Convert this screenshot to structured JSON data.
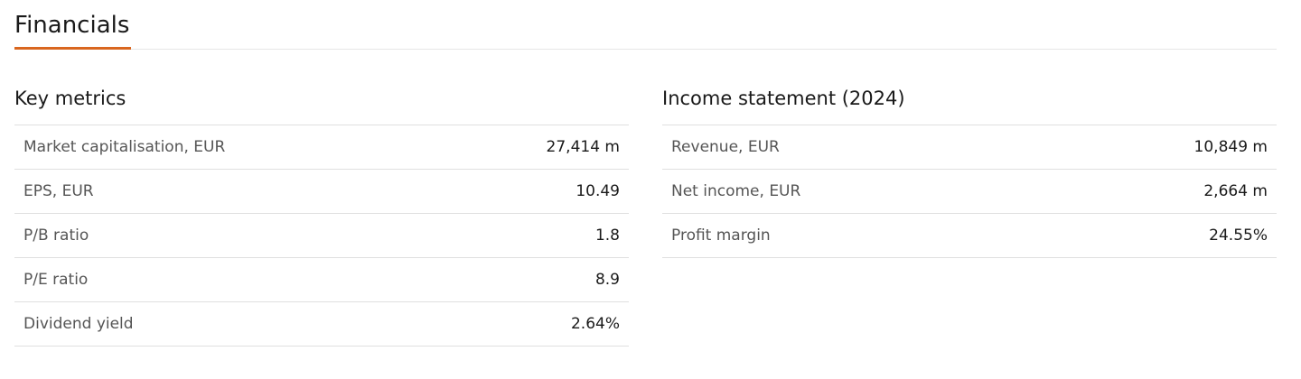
{
  "title": "Financials",
  "key_metrics": {
    "heading": "Key metrics",
    "rows": [
      {
        "label": "Market capitalisation, EUR",
        "value": "27,414 m"
      },
      {
        "label": "EPS, EUR",
        "value": "10.49"
      },
      {
        "label": "P/B ratio",
        "value": "1.8"
      },
      {
        "label": "P/E ratio",
        "value": "8.9"
      },
      {
        "label": "Dividend yield",
        "value": "2.64%"
      }
    ]
  },
  "income": {
    "heading": "Income statement (2024)",
    "rows": [
      {
        "label": "Revenue, EUR",
        "value": "10,849 m"
      },
      {
        "label": "Net income, EUR",
        "value": "2,664 m"
      },
      {
        "label": "Profit margin",
        "value": "24.55%"
      }
    ]
  },
  "accent": "#d9661f"
}
